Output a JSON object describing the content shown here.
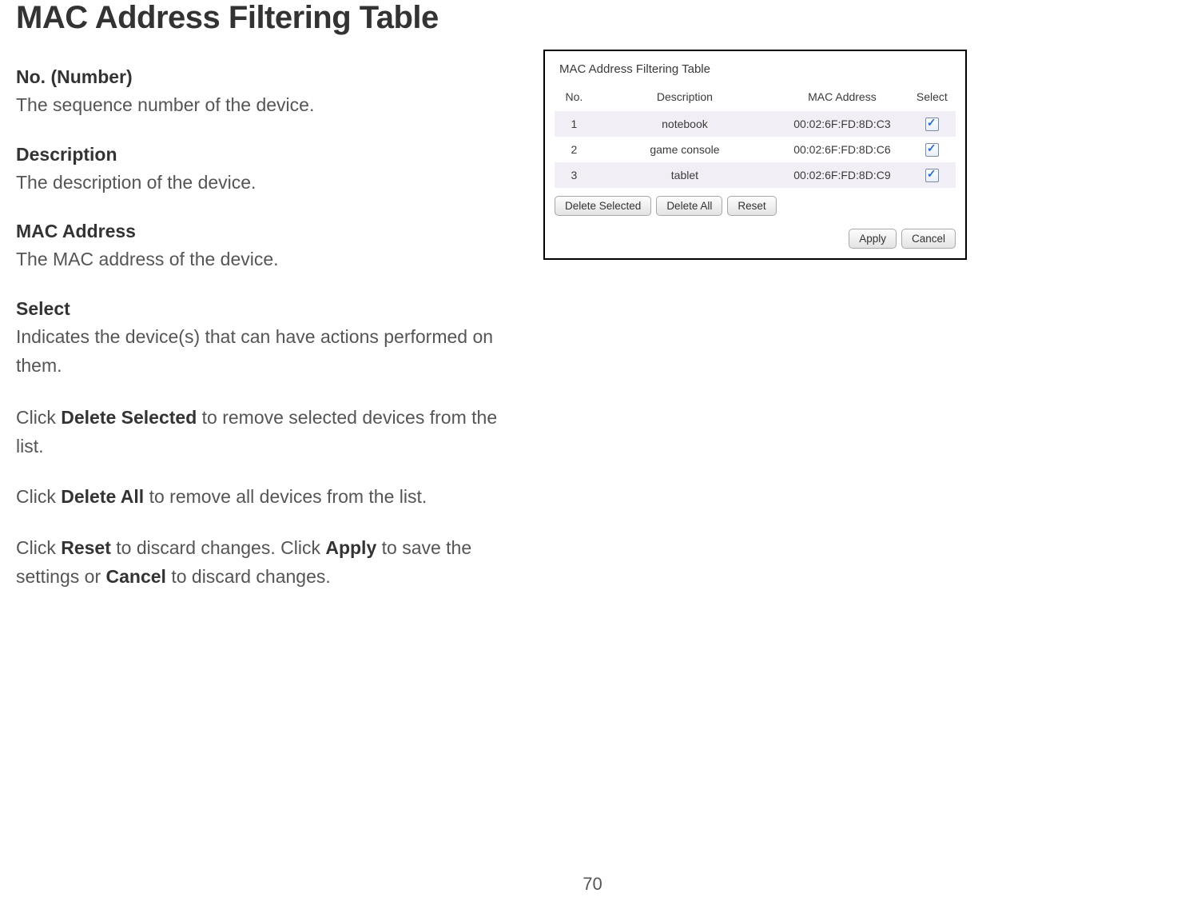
{
  "page_title": "MAC Address Filtering Table",
  "page_number": "70",
  "terms": {
    "no_heading": "No. (Number)",
    "no_body": "The sequence number of the device.",
    "desc_heading": "Description",
    "desc_body": "The description of the device.",
    "mac_heading": "MAC Address",
    "mac_body": "The MAC address of the device.",
    "select_heading": "Select",
    "select_body": "Indicates the device(s) that can have actions performed on them."
  },
  "actions": {
    "p1_pre": "Click ",
    "p1_bold": "Delete Selected",
    "p1_post": " to remove selected devices from the list.",
    "p2_pre": "Click ",
    "p2_bold": "Delete All",
    "p2_post": " to remove all devices from the list.",
    "p3_pre": "Click ",
    "p3_bold1": "Reset",
    "p3_mid1": " to discard changes. Click ",
    "p3_bold2": "Apply",
    "p3_mid2": " to save the settings or ",
    "p3_bold3": "Cancel",
    "p3_post": " to discard changes."
  },
  "panel": {
    "title": "MAC Address Filtering Table",
    "columns": {
      "no": "No.",
      "desc": "Description",
      "mac": "MAC Address",
      "select": "Select"
    },
    "rows": [
      {
        "no": "1",
        "desc": "notebook",
        "mac": "00:02:6F:FD:8D:C3",
        "checked": true
      },
      {
        "no": "2",
        "desc": "game console",
        "mac": "00:02:6F:FD:8D:C6",
        "checked": true
      },
      {
        "no": "3",
        "desc": "tablet",
        "mac": "00:02:6F:FD:8D:C9",
        "checked": true
      }
    ],
    "buttons": {
      "delete_selected": "Delete Selected",
      "delete_all": "Delete All",
      "reset": "Reset",
      "apply": "Apply",
      "cancel": "Cancel"
    },
    "colors": {
      "odd_row_bg": "#f2eef6",
      "even_row_bg": "#ffffff",
      "panel_border": "#000000",
      "checkbox_check": "#2a6fc9"
    }
  }
}
